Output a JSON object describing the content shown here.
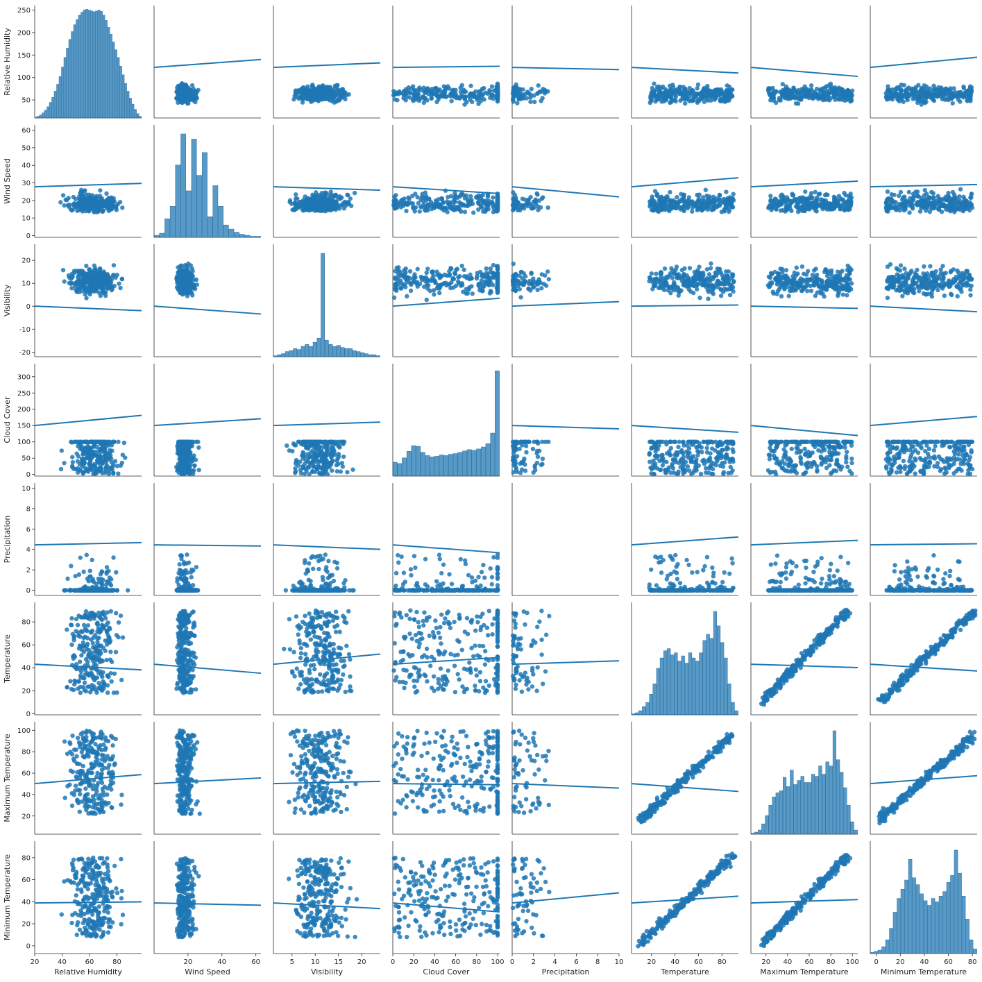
{
  "chart_data": {
    "type": "pairplot",
    "variables": [
      {
        "name": "Relative Humidity",
        "ticks": [
          20,
          40,
          60,
          80
        ],
        "range": [
          20,
          98
        ],
        "tick_labels_y": [
          "50",
          "100",
          "150",
          "200",
          "250"
        ]
      },
      {
        "name": "Wind Speed",
        "ticks": [
          20,
          40,
          60
        ],
        "range": [
          0,
          63
        ]
      },
      {
        "name": "Visibility",
        "ticks": [
          5,
          10,
          15,
          20
        ],
        "range": [
          1,
          24
        ]
      },
      {
        "name": "Cloud Cover",
        "ticks": [
          0,
          20,
          40,
          60,
          80,
          100
        ],
        "range": [
          0,
          102
        ]
      },
      {
        "name": "Precipitation",
        "ticks": [
          0,
          2,
          4,
          6,
          8,
          10
        ],
        "range": [
          0,
          10
        ]
      },
      {
        "name": "Temperature",
        "ticks": [
          20,
          40,
          60,
          80
        ],
        "range": [
          3,
          94
        ]
      },
      {
        "name": "Maximum Temperature",
        "ticks": [
          20,
          40,
          60,
          80,
          100
        ],
        "range": [
          6,
          105
        ]
      },
      {
        "name": "Minimum Temperature",
        "ticks": [
          0,
          20,
          40,
          60,
          80
        ],
        "range": [
          -5,
          84
        ]
      }
    ],
    "y_axes": [
      {
        "name": "Relative Humidity",
        "ticks": [
          50,
          100,
          150,
          200,
          250
        ],
        "range": [
          10,
          260
        ]
      },
      {
        "name": "Wind Speed",
        "ticks": [
          0,
          10,
          20,
          30,
          40,
          50,
          60
        ],
        "range": [
          -1,
          63
        ]
      },
      {
        "name": "Visibility",
        "ticks": [
          -20,
          -10,
          0,
          10,
          20
        ],
        "range": [
          -22,
          27
        ]
      },
      {
        "name": "Cloud Cover",
        "ticks": [
          0,
          50,
          100,
          150,
          200,
          250,
          300
        ],
        "range": [
          -5,
          340
        ]
      },
      {
        "name": "Precipitation",
        "ticks": [
          0,
          2,
          4,
          6,
          8,
          10
        ],
        "range": [
          -0.5,
          10.5
        ]
      },
      {
        "name": "Temperature",
        "ticks": [
          0,
          20,
          40,
          60,
          80
        ],
        "range": [
          -1,
          97
        ]
      },
      {
        "name": "Maximum Temperature",
        "ticks": [
          20,
          40,
          60,
          80,
          100
        ],
        "range": [
          3,
          108
        ]
      },
      {
        "name": "Minimum Temperature",
        "ticks": [
          0,
          20,
          40,
          60,
          80
        ],
        "range": [
          -7,
          95
        ]
      }
    ],
    "histograms": {
      "Relative Humidity": [
        2,
        4,
        7,
        12,
        18,
        26,
        36,
        48,
        62,
        78,
        96,
        118,
        140,
        162,
        182,
        200,
        216,
        228,
        238,
        245,
        250,
        252,
        250,
        248,
        246,
        248,
        250,
        247,
        238,
        226,
        210,
        194,
        176,
        158,
        140,
        120,
        100,
        80,
        62,
        46,
        32,
        20,
        10,
        4
      ],
      "Wind Speed": [
        0.02,
        0.04,
        0.18,
        0.3,
        0.7,
        1.0,
        0.45,
        0.95,
        0.6,
        0.82,
        0.2,
        0.5,
        0.3,
        0.12,
        0.08,
        0.05,
        0.03,
        0.02,
        0.01,
        0.01
      ],
      "Visibility": [
        0.01,
        0.02,
        0.03,
        0.05,
        0.06,
        0.08,
        0.07,
        0.1,
        0.12,
        0.1,
        0.14,
        0.18,
        1.0,
        0.16,
        0.12,
        0.1,
        0.11,
        0.09,
        0.08,
        0.08,
        0.06,
        0.05,
        0.04,
        0.03,
        0.02,
        0.02,
        0.01
      ],
      "Cloud Cover": [
        42,
        38,
        55,
        75,
        92,
        90,
        72,
        62,
        58,
        60,
        64,
        62,
        66,
        68,
        72,
        76,
        80,
        78,
        82,
        88,
        98,
        130,
        318
      ],
      "Temperature": [
        0.01,
        0.02,
        0.04,
        0.08,
        0.12,
        0.2,
        0.3,
        0.45,
        0.55,
        0.62,
        0.64,
        0.58,
        0.6,
        0.52,
        0.57,
        0.5,
        0.6,
        0.55,
        0.52,
        0.6,
        0.72,
        0.78,
        0.74,
        1.0,
        0.86,
        0.7,
        0.55,
        0.3,
        0.12,
        0.04
      ],
      "Maximum Temperature": [
        0.01,
        0.02,
        0.04,
        0.1,
        0.18,
        0.28,
        0.36,
        0.4,
        0.42,
        0.55,
        0.46,
        0.62,
        0.48,
        0.52,
        0.56,
        0.5,
        0.5,
        0.58,
        0.56,
        0.66,
        0.58,
        0.7,
        0.66,
        1.0,
        0.72,
        0.6,
        0.45,
        0.28,
        0.12,
        0.04
      ],
      "Minimum Temperature": [
        0.01,
        0.02,
        0.03,
        0.06,
        0.12,
        0.22,
        0.36,
        0.48,
        0.56,
        0.64,
        0.82,
        0.66,
        0.6,
        0.52,
        0.46,
        0.42,
        0.48,
        0.45,
        0.5,
        0.54,
        0.62,
        0.68,
        0.9,
        0.7,
        0.5,
        0.3,
        0.12,
        0.04
      ]
    },
    "regression_lines": "Every off-diagonal panel shows a scatter of the data with a linear regression fit and confidence band",
    "grid": false,
    "colors": {
      "points": "#1f77b4",
      "line": "#1f77b4",
      "band": "#c6dbef"
    }
  }
}
